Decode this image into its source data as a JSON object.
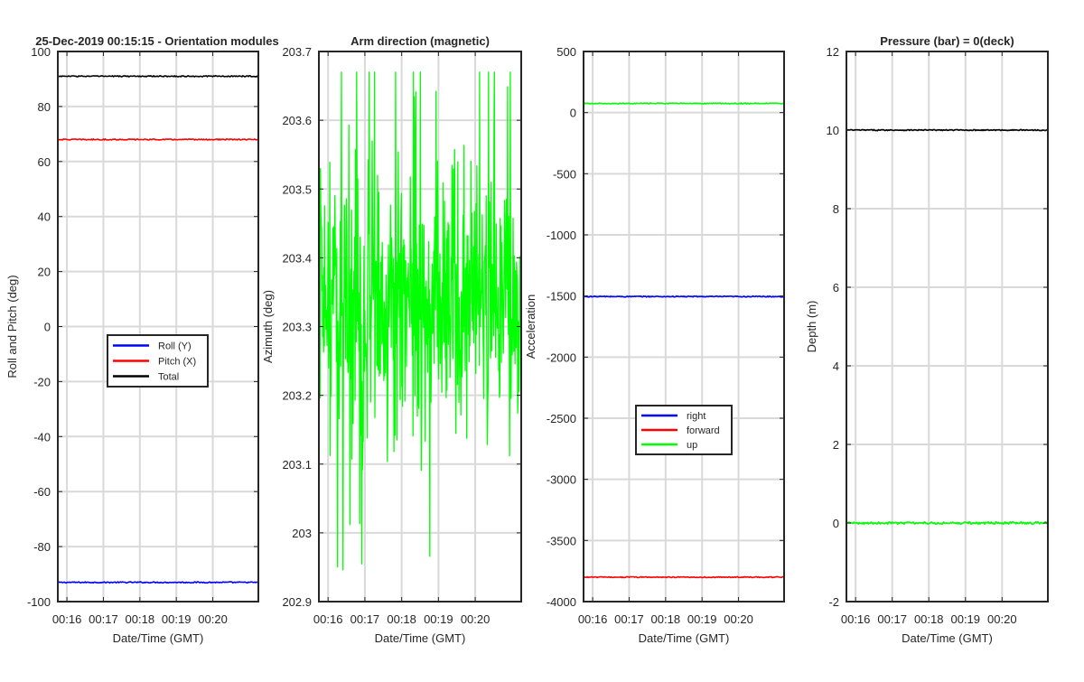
{
  "figure_title": "25-Dec-2019 00:15:15 - Orientation modules",
  "chart_data": [
    {
      "type": "line",
      "title": "",
      "xlabel": "Date/Time (GMT)",
      "ylabel": "Roll and Pitch (deg)",
      "xlim": [
        0,
        5.5
      ],
      "ylim": [
        -100,
        100
      ],
      "xticks": [
        0.25,
        1.25,
        2.25,
        3.25,
        4.25
      ],
      "xtick_labels": [
        "00:16",
        "00:17",
        "00:18",
        "00:19",
        "00:20"
      ],
      "yticks": [
        -100,
        -80,
        -60,
        -40,
        -20,
        0,
        20,
        40,
        60,
        80,
        100
      ],
      "grid": true,
      "legend": {
        "placement": "center-left"
      },
      "series": [
        {
          "name": "Roll (Y)",
          "color": "#0000ff",
          "kind": "flat",
          "value": -93.0,
          "noise": 0.2
        },
        {
          "name": "Pitch (X)",
          "color": "#ff0000",
          "kind": "flat",
          "value": 68.0,
          "noise": 0.2
        },
        {
          "name": "Total",
          "color": "#000000",
          "kind": "flat",
          "value": 91.0,
          "noise": 0.2
        }
      ]
    },
    {
      "type": "line",
      "title": "Arm direction (magnetic)",
      "xlabel": "Date/Time (GMT)",
      "ylabel": "Azimuth (deg)",
      "xlim": [
        0,
        5.5
      ],
      "ylim": [
        202.9,
        203.7
      ],
      "xticks": [
        0.25,
        1.25,
        2.25,
        3.25,
        4.25
      ],
      "xtick_labels": [
        "00:16",
        "00:17",
        "00:18",
        "00:19",
        "00:20"
      ],
      "yticks": [
        202.9,
        203.0,
        203.1,
        203.2,
        203.3,
        203.4,
        203.5,
        203.6,
        203.7
      ],
      "ytick_labels": [
        "202.9",
        "203",
        "203.1",
        "203.2",
        "203.3",
        "203.4",
        "203.5",
        "203.6",
        "203.7"
      ],
      "grid": true,
      "series": [
        {
          "name": "Azimuth",
          "color": "#00ff00",
          "kind": "noisy",
          "value": 203.33,
          "spread": 0.12,
          "min": 202.94,
          "max": 203.67
        }
      ]
    },
    {
      "type": "line",
      "title": "",
      "xlabel": "Date/Time (GMT)",
      "ylabel": "Acceleration",
      "xlim": [
        0,
        5.5
      ],
      "ylim": [
        -4000,
        500
      ],
      "xticks": [
        0.25,
        1.25,
        2.25,
        3.25,
        4.25
      ],
      "xtick_labels": [
        "00:16",
        "00:17",
        "00:18",
        "00:19",
        "00:20"
      ],
      "yticks": [
        -4000,
        -3500,
        -3000,
        -2500,
        -2000,
        -1500,
        -1000,
        -500,
        0,
        500
      ],
      "grid": true,
      "legend": {
        "placement": "lower-center"
      },
      "series": [
        {
          "name": "right",
          "color": "#0000ff",
          "kind": "flat",
          "value": -1505,
          "noise": 4
        },
        {
          "name": "forward",
          "color": "#ff0000",
          "kind": "flat",
          "value": -3800,
          "noise": 4
        },
        {
          "name": "up",
          "color": "#00ff00",
          "kind": "flat",
          "value": 75,
          "noise": 4
        }
      ]
    },
    {
      "type": "line",
      "title": "Pressure (bar) = 0(deck)",
      "xlabel": "Date/Time (GMT)",
      "ylabel": "Depth (m)",
      "xlim": [
        0,
        5.5
      ],
      "ylim": [
        -2,
        12
      ],
      "xticks": [
        0.25,
        1.25,
        2.25,
        3.25,
        4.25
      ],
      "xtick_labels": [
        "00:16",
        "00:17",
        "00:18",
        "00:19",
        "00:20"
      ],
      "yticks": [
        -2,
        0,
        2,
        4,
        6,
        8,
        10,
        12
      ],
      "grid": true,
      "series": [
        {
          "name": "Pressure",
          "color": "#000000",
          "kind": "flat",
          "value": 10.0,
          "noise": 0.015
        },
        {
          "name": "Depth",
          "color": "#00ff00",
          "kind": "flat",
          "value": 0.0,
          "noise": 0.03
        }
      ]
    }
  ]
}
